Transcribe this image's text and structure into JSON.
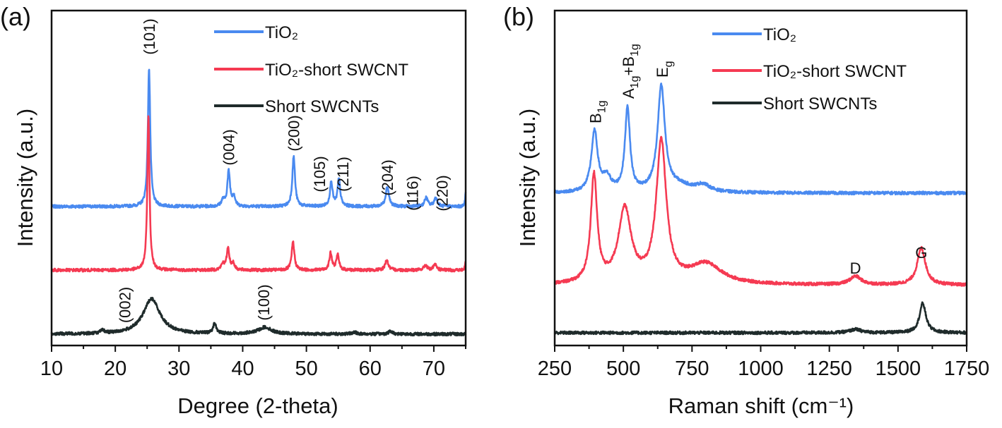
{
  "colors": {
    "TiO2": "#4a8af0",
    "TiO2-short SWCNT": "#f53a52",
    "Short SWCNTs": "#1f2b2b"
  },
  "chart_data": [
    {
      "panel_label": "(a)",
      "type": "line",
      "xlabel": "Degree (2-theta)",
      "ylabel": "Intensity (a.u.)",
      "xlim": [
        10,
        75
      ],
      "ylim": [
        0,
        100
      ],
      "xticks": [
        10,
        20,
        30,
        40,
        50,
        60,
        70
      ],
      "grid": false,
      "legend": "top-right",
      "legend_entries": [
        "TiO₂",
        "TiO₂-short SWCNT",
        "Short SWCNTs"
      ],
      "series": [
        {
          "name": "TiO₂",
          "color": "#4a8af0",
          "baseline": 41.5,
          "peaks": [
            [
              25.3,
              41.5,
              0.22
            ],
            [
              36.9,
              1.8,
              0.3
            ],
            [
              37.8,
              10.5,
              0.25
            ],
            [
              38.6,
              3,
              0.25
            ],
            [
              48.0,
              15,
              0.25
            ],
            [
              53.9,
              7.3,
              0.25
            ],
            [
              55.1,
              8,
              0.25
            ],
            [
              62.7,
              6,
              0.3
            ],
            [
              68.8,
              2.6,
              0.3
            ],
            [
              70.3,
              2.6,
              0.3
            ],
            [
              75.0,
              4.5,
              0.1
            ]
          ]
        },
        {
          "name": "TiO₂-short SWCNT",
          "color": "#f53a52",
          "baseline": 22.5,
          "peaks": [
            [
              25.2,
              46.5,
              0.2
            ],
            [
              36.9,
              1.8,
              0.3
            ],
            [
              37.7,
              6.5,
              0.25
            ],
            [
              38.5,
              2,
              0.25
            ],
            [
              47.9,
              8.5,
              0.25
            ],
            [
              53.8,
              5,
              0.25
            ],
            [
              54.9,
              4.5,
              0.25
            ],
            [
              62.6,
              3,
              0.3
            ],
            [
              68.7,
              1.5,
              0.3
            ],
            [
              70.2,
              1.6,
              0.3
            ],
            [
              75.0,
              3,
              0.1
            ]
          ]
        },
        {
          "name": "Short SWCNTs",
          "color": "#1f2b2b",
          "baseline": 3.4,
          "peaks": [
            [
              18.0,
              0.8,
              0.4
            ],
            [
              25.7,
              10.5,
              1.6
            ],
            [
              35.6,
              3,
              0.3
            ],
            [
              43.5,
              2,
              1.2
            ],
            [
              57.5,
              0.5,
              0.5
            ],
            [
              63.2,
              0.8,
              0.4
            ]
          ]
        }
      ],
      "annotations": [
        {
          "text": "(101)",
          "x": 25.3
        },
        {
          "text": "(004)",
          "x": 37.8
        },
        {
          "text": "(200)",
          "x": 48.0
        },
        {
          "text": "(105)",
          "x": 53.6
        },
        {
          "text": "(211)",
          "x": 55.5
        },
        {
          "text": "(204)",
          "x": 62.7
        },
        {
          "text": "(116)",
          "x": 67.5
        },
        {
          "text": "(220)",
          "x": 70.5
        },
        {
          "text": "(002)",
          "x": 21.5
        },
        {
          "text": "(100)",
          "x": 43.3
        }
      ]
    },
    {
      "panel_label": "(b)",
      "type": "line",
      "xlabel": "Raman shift (cm⁻¹)",
      "ylabel": "Intensity (a.u.)",
      "xlim": [
        250,
        1750
      ],
      "ylim": [
        0,
        100
      ],
      "xticks": [
        250,
        500,
        750,
        1000,
        1250,
        1500,
        1750
      ],
      "grid": false,
      "legend": "top-right",
      "legend_entries": [
        "TiO₂",
        "TiO₂-short SWCNT",
        "Short SWCNTs"
      ],
      "series": [
        {
          "name": "TiO₂",
          "color": "#4a8af0",
          "baseline": 45.5,
          "peaks": [
            [
              395,
              18,
              14
            ],
            [
              440,
              4,
              18
            ],
            [
              515,
              25,
              11
            ],
            [
              638,
              31,
              16
            ],
            [
              790,
              2,
              30
            ],
            [
              700,
              2,
              60
            ]
          ]
        },
        {
          "name": "TiO₂-short SWCNT",
          "color": "#f53a52",
          "baseline": 18,
          "peaks": [
            [
              393,
              32,
              14
            ],
            [
              505,
              22,
              28
            ],
            [
              638,
              42,
              22
            ],
            [
              800,
              6,
              70
            ],
            [
              1345,
              2.5,
              25
            ],
            [
              1585,
              11,
              18
            ]
          ]
        },
        {
          "name": "Short SWCNTs",
          "color": "#1f2b2b",
          "baseline": 3.8,
          "peaks": [
            [
              1345,
              1,
              25
            ],
            [
              1590,
              8.8,
              14
            ]
          ]
        }
      ],
      "annotations": [
        {
          "parts": [
            [
              "B",
              ""
            ],
            [
              "1g",
              "sub"
            ]
          ],
          "x": 395
        },
        {
          "parts": [
            [
              "A",
              ""
            ],
            [
              "1g",
              "sub"
            ],
            [
              "+B",
              ""
            ],
            [
              "1g",
              "sub"
            ]
          ],
          "x": 515
        },
        {
          "parts": [
            [
              "E",
              ""
            ],
            [
              "g",
              "sub"
            ]
          ],
          "x": 638
        },
        {
          "parts": [
            [
              "D",
              ""
            ]
          ],
          "x": 1345
        },
        {
          "parts": [
            [
              "G",
              ""
            ]
          ],
          "x": 1585
        }
      ]
    }
  ]
}
